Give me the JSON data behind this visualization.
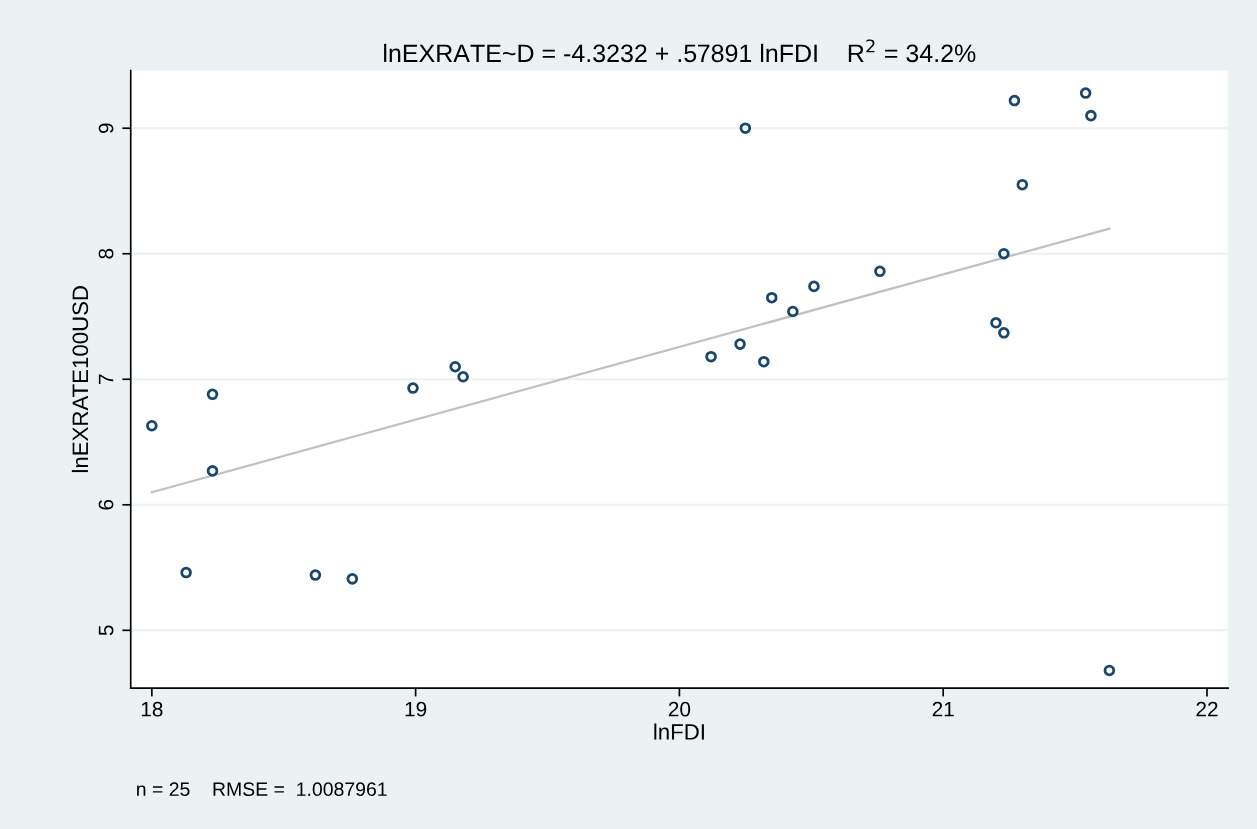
{
  "chart_data": {
    "type": "scatter",
    "title": "lnEXRATE~D = -4.3232 + .57891 lnFDI    R$^{2}$ = 34.2%",
    "xlabel": "lnFDI",
    "ylabel": "lnEXRATE100USD",
    "annotations": [
      "n = 25    RMSE =  1.0087961"
    ],
    "series": [
      {
        "color": "#1a476f",
        "marker": "circle",
        "x": [
          18.0,
          18.13,
          18.23,
          18.23,
          18.62,
          18.76,
          18.99,
          19.15,
          19.18,
          20.12,
          20.23,
          20.25,
          20.32,
          20.35,
          20.43,
          20.51,
          20.76,
          21.2,
          21.23,
          21.23,
          21.27,
          21.3,
          21.54,
          21.56,
          21.63
        ],
        "values": [
          6.63,
          5.46,
          6.88,
          6.27,
          5.44,
          5.41,
          6.93,
          7.1,
          7.02,
          7.18,
          7.28,
          9.0,
          7.14,
          7.65,
          7.54,
          7.74,
          7.86,
          7.45,
          7.37,
          8.0,
          9.22,
          8.55,
          9.28,
          9.1,
          4.68
        ]
      },
      {
        "type": "line",
        "color": "#c0c0c0",
        "marker": "none",
        "line_style": "solid",
        "x": [
          18.0,
          21.63
        ],
        "values": [
          6.1,
          8.2
        ]
      }
    ],
    "xlim": [
      17.92,
      22.08
    ],
    "ylim": [
      4.54,
      9.46
    ],
    "xticks": [
      18,
      19,
      20,
      21,
      22
    ],
    "yticks": [
      5,
      6,
      7,
      8,
      9
    ],
    "grid": "y",
    "legend": false
  }
}
